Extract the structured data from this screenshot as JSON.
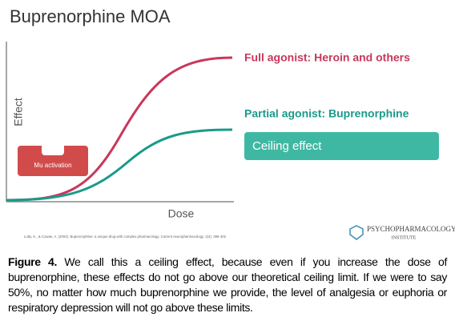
{
  "title": "Buprenorphine MOA",
  "diagram": {
    "y_axis_label": "Effect",
    "x_axis_label": "Dose",
    "curves": [
      {
        "label": "Full agonist: Heroin and others"
      },
      {
        "label": "Partial agonist: Buprenorphine"
      }
    ],
    "ceiling_box": "Ceiling effect",
    "mu_box": "Mu activation"
  },
  "citation": "Lutty, K., & Cowan, A. (2004). Buprenorphine: a unique drug with complex pharmacology. Current neuropharmacology, 2(4), 395-402",
  "logo": {
    "line1": "PSYCHOPHARMACOLOGY",
    "line2": "INSTITUTE"
  },
  "caption": {
    "label": "Figure 4.",
    "text": "We call this a ceiling effect, because even if you increase the dose of buprenorphine, these effects do not go above our theoretical ceiling limit. If we were to say 50%, no matter how much buprenorphine we provide, the level of analgesia or euphoria or respiratory depression will not go above these limits."
  }
}
